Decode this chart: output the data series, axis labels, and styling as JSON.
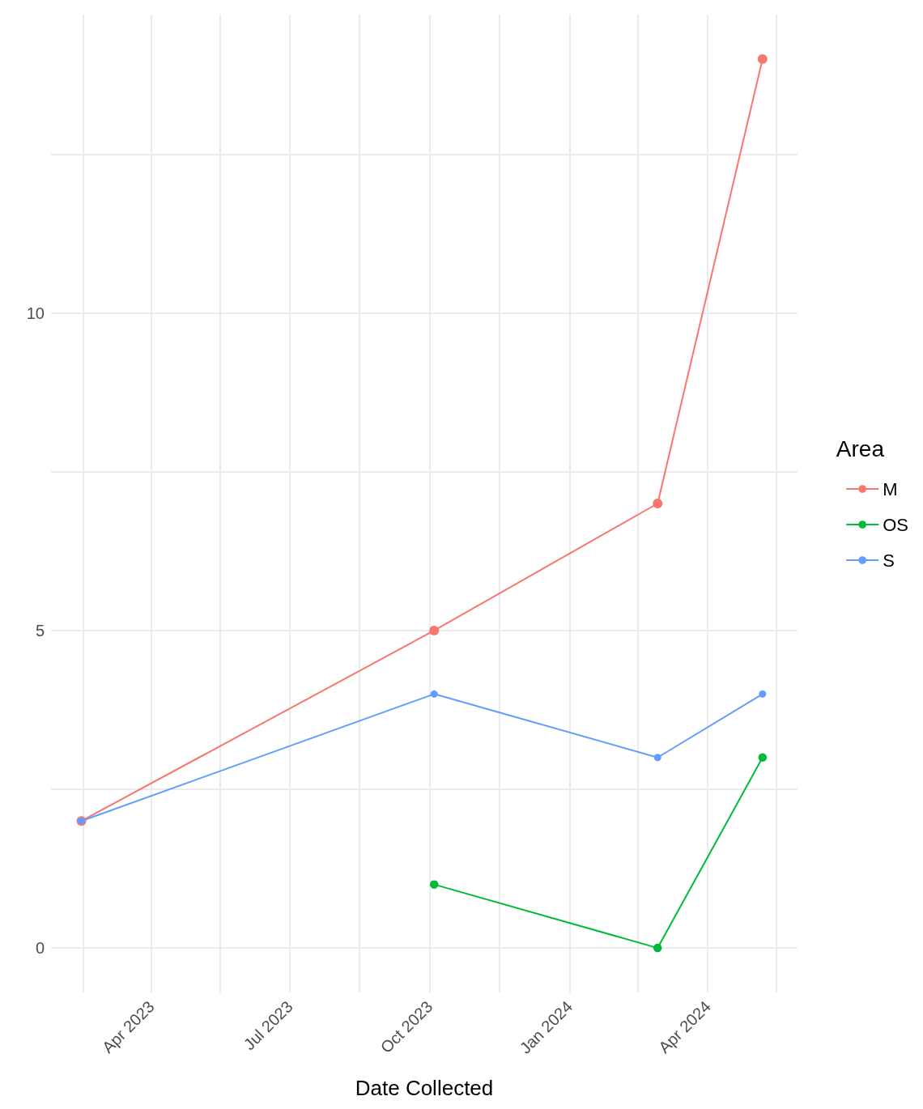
{
  "chart_data": {
    "type": "line",
    "xlabel": "Date Collected",
    "legend_title": "Area",
    "legend": "right",
    "marker": "circle",
    "line_style": "solid",
    "grid": true,
    "xlim": [
      "2023-01-25",
      "2024-05-30"
    ],
    "xticks": [
      {
        "value": "2023-02-15",
        "label": null
      },
      {
        "value": "2023-04-01",
        "label": "Apr 2023"
      },
      {
        "value": "2023-05-16",
        "label": null
      },
      {
        "value": "2023-07-01",
        "label": "Jul 2023"
      },
      {
        "value": "2023-08-16",
        "label": null
      },
      {
        "value": "2023-10-01",
        "label": "Oct 2023"
      },
      {
        "value": "2023-11-16",
        "label": null
      },
      {
        "value": "2024-01-01",
        "label": "Jan 2024"
      },
      {
        "value": "2024-02-15",
        "label": null
      },
      {
        "value": "2024-04-01",
        "label": "Apr 2024"
      },
      {
        "value": "2024-05-16",
        "label": null
      }
    ],
    "ylim": [
      -0.7,
      14.7
    ],
    "yticks": [
      0,
      {
        "value": 2.5,
        "label": null
      },
      5,
      {
        "value": 7.5,
        "label": null
      },
      10,
      {
        "value": 12.5,
        "label": null
      }
    ],
    "series": [
      {
        "name": "M",
        "color": "#f8766d",
        "x": [
          "2023-02-14",
          "2023-10-04",
          "2024-02-28",
          "2024-05-07"
        ],
        "values": [
          2,
          5,
          7,
          14
        ]
      },
      {
        "name": "OS",
        "color": "#00ba38",
        "x": [
          "2023-10-04",
          "2024-02-28",
          "2024-05-07"
        ],
        "values": [
          1,
          0,
          3
        ]
      },
      {
        "name": "S",
        "color": "#619cff",
        "x": [
          "2023-02-14",
          "2023-10-04",
          "2024-02-28",
          "2024-05-07"
        ],
        "values": [
          2,
          4,
          3,
          4
        ]
      }
    ]
  }
}
